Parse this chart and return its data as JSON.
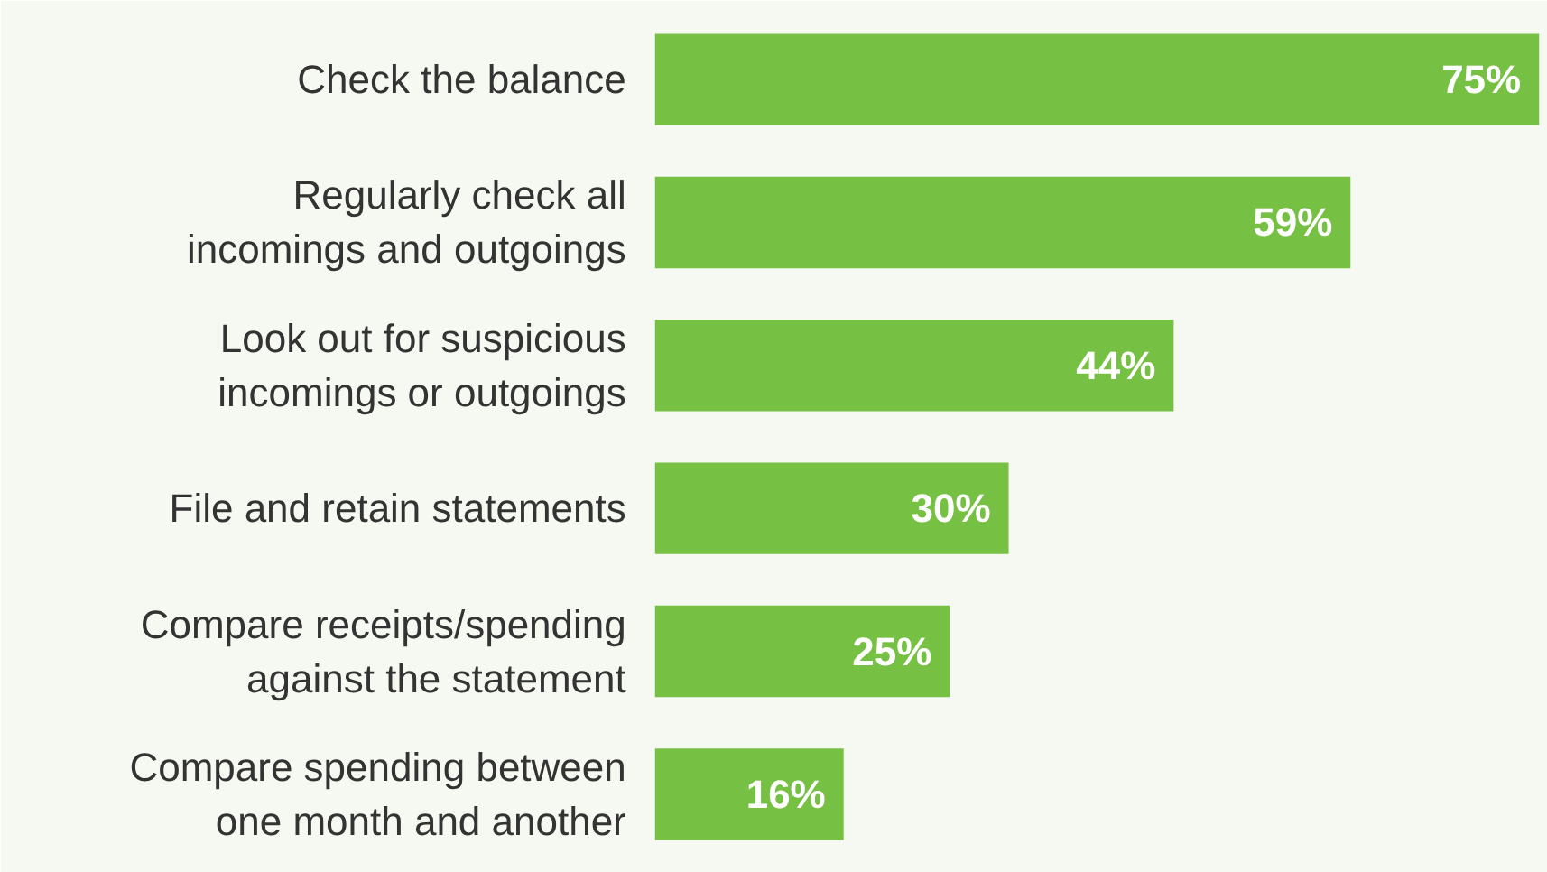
{
  "chart_data": {
    "type": "bar",
    "orientation": "horizontal",
    "categories": [
      "Check the balance",
      "Regularly check all\nincomings and outgoings",
      "Look out for suspicious\nincomings or outgoings",
      "File and retain statements",
      "Compare receipts/spending\nagainst the statement",
      "Compare spending between\none month and another"
    ],
    "values": [
      75,
      59,
      44,
      30,
      25,
      16
    ],
    "value_labels": [
      "75%",
      "59%",
      "44%",
      "30%",
      "25%",
      "16%"
    ],
    "color": "#76c043"
  }
}
